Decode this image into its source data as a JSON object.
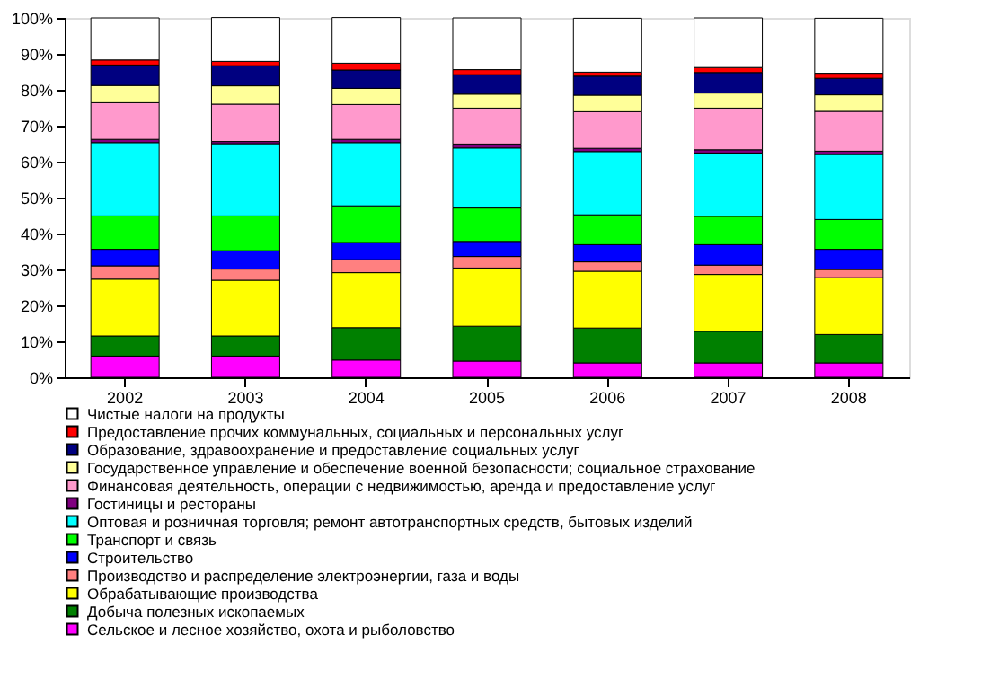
{
  "chart_data": {
    "type": "bar",
    "stacked": true,
    "categories": [
      "2002",
      "2003",
      "2004",
      "2005",
      "2006",
      "2007",
      "2008"
    ],
    "ylim": [
      0,
      100
    ],
    "yticks": [
      {
        "value": 0,
        "label": "0%"
      },
      {
        "value": 10,
        "label": "10%"
      },
      {
        "value": 20,
        "label": "20%"
      },
      {
        "value": 30,
        "label": "30%"
      },
      {
        "value": 40,
        "label": "40%"
      },
      {
        "value": 50,
        "label": "50%"
      },
      {
        "value": 60,
        "label": "60%"
      },
      {
        "value": 70,
        "label": "70%"
      },
      {
        "value": 80,
        "label": "80%"
      },
      {
        "value": 90,
        "label": "90%"
      },
      {
        "value": 100,
        "label": "100%"
      }
    ],
    "grid": false,
    "legend": "bottom",
    "series": [
      {
        "name": "Сельское  и лесное хозяйство, охота и рыболовство",
        "color": "#ff00ff",
        "values": [
          5.9,
          5.9,
          4.8,
          4.5,
          4.0,
          4.0,
          4.0
        ]
      },
      {
        "name": "Добыча полезных ископаемых",
        "color": "#008000",
        "values": [
          5.6,
          5.6,
          9.0,
          9.7,
          9.7,
          8.8,
          7.9
        ]
      },
      {
        "name": "Обрабатывающие производства",
        "color": "#ffff00",
        "values": [
          15.8,
          15.5,
          15.3,
          16.2,
          15.8,
          15.8,
          15.8
        ]
      },
      {
        "name": "Производство и распределение электроэнергии, газа и воды",
        "color": "#ff8080",
        "values": [
          3.7,
          3.1,
          3.6,
          3.2,
          2.6,
          2.6,
          2.3
        ]
      },
      {
        "name": "Строительство",
        "color": "#0000ff",
        "values": [
          4.6,
          5.1,
          4.8,
          4.2,
          4.8,
          5.7,
          5.6
        ]
      },
      {
        "name": "Транспорт и связь",
        "color": "#00ff00",
        "values": [
          9.3,
          9.7,
          10.2,
          9.3,
          8.3,
          7.9,
          8.3
        ]
      },
      {
        "name": "Оптовая и розничная торговля; ремонт автотранспортных средств,  бытовых изделий",
        "color": "#00ffff",
        "values": [
          20.4,
          20.1,
          17.6,
          16.7,
          17.6,
          17.6,
          18.1
        ]
      },
      {
        "name": "Гостиницы и рестораны",
        "color": "#800080",
        "values": [
          0.9,
          0.6,
          0.9,
          1.1,
          0.9,
          0.9,
          0.9
        ]
      },
      {
        "name": "Финансовая деятельность, операции с недвижимостью, аренда и предоставление услуг",
        "color": "#ff99cc",
        "values": [
          10.2,
          10.4,
          9.7,
          10.0,
          10.2,
          11.6,
          11.1
        ]
      },
      {
        "name": "Государственное управление и обеспечение военной безопасности; социальное страхование",
        "color": "#ffff99",
        "values": [
          4.8,
          5.1,
          4.5,
          3.9,
          4.6,
          4.2,
          4.6
        ]
      },
      {
        "name": "Образование, здравоохранение и предоставление социальных услуг",
        "color": "#000080",
        "values": [
          5.7,
          5.6,
          5.1,
          5.4,
          5.3,
          5.7,
          4.6
        ]
      },
      {
        "name": "Предоставление прочих коммунальных, социальных и персональных услуг",
        "color": "#ff0000",
        "values": [
          1.4,
          1.2,
          1.9,
          1.4,
          1.1,
          1.4,
          1.4
        ]
      },
      {
        "name": "Чистые налоги на продукты",
        "color": "#ffffff",
        "values": [
          11.7,
          12.2,
          12.7,
          14.4,
          15.0,
          13.8,
          15.3
        ]
      }
    ]
  }
}
